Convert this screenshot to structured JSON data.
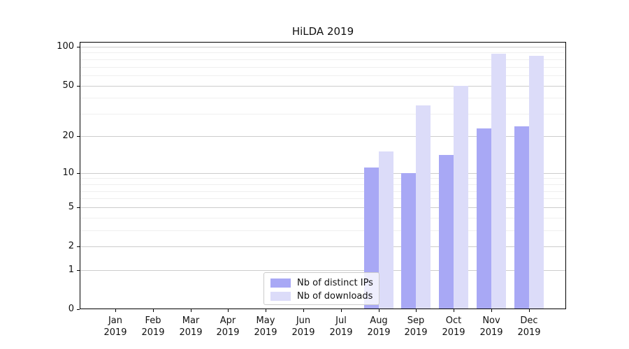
{
  "chart_data": {
    "type": "bar",
    "title": "HiLDA 2019",
    "months": [
      {
        "m": "Jan",
        "y": "2019"
      },
      {
        "m": "Feb",
        "y": "2019"
      },
      {
        "m": "Mar",
        "y": "2019"
      },
      {
        "m": "Apr",
        "y": "2019"
      },
      {
        "m": "May",
        "y": "2019"
      },
      {
        "m": "Jun",
        "y": "2019"
      },
      {
        "m": "Jul",
        "y": "2019"
      },
      {
        "m": "Aug",
        "y": "2019"
      },
      {
        "m": "Sep",
        "y": "2019"
      },
      {
        "m": "Oct",
        "y": "2019"
      },
      {
        "m": "Nov",
        "y": "2019"
      },
      {
        "m": "Dec",
        "y": "2019"
      }
    ],
    "series": [
      {
        "id": "distinct-ips",
        "name": "Nb of distinct IPs",
        "color": "#a8a8f5",
        "values": [
          0,
          0,
          0,
          0,
          0,
          0,
          0,
          11,
          10,
          14,
          23,
          24
        ]
      },
      {
        "id": "downloads",
        "name": "Nb of downloads",
        "color": "#dcdcf9",
        "values": [
          0,
          0,
          0,
          0,
          0,
          0,
          0,
          15,
          35,
          50,
          88,
          85
        ]
      }
    ],
    "y_axis": {
      "scale": "log1p",
      "major_ticks": [
        0,
        1,
        2,
        5,
        10,
        20,
        50,
        100
      ],
      "minor_ticks": [
        3,
        4,
        6,
        7,
        8,
        9,
        30,
        40,
        60,
        70,
        80,
        90
      ],
      "range": [
        0,
        109
      ]
    },
    "legend_position": "lower center"
  }
}
